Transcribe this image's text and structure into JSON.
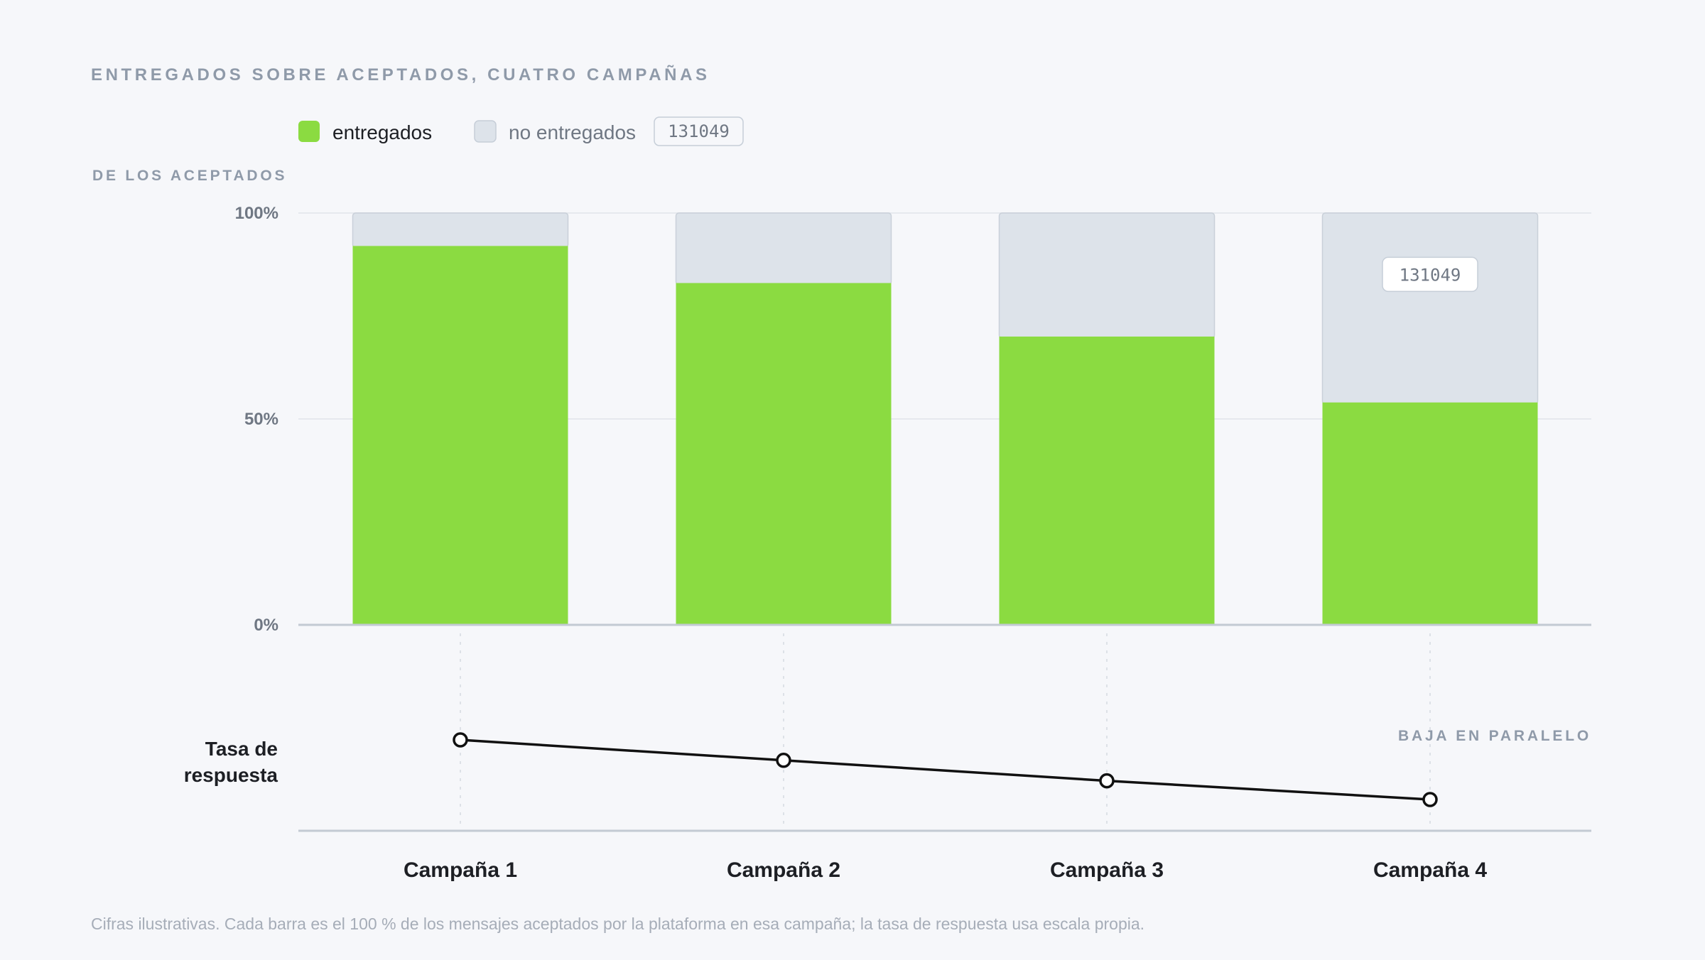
{
  "title": "ENTREGADOS SOBRE ACEPTADOS, CUATRO CAMPAÑAS",
  "footnote": "Cifras ilustrativas. Cada barra es el 100 % de los mensajes aceptados por la plataforma en esa campaña; la tasa de respuesta usa escala propia.",
  "legend": {
    "delivered_label": "entregados",
    "undelivered_label": "no entregados",
    "badge": "131049"
  },
  "colors": {
    "delivered": "#8bdb41",
    "undelivered": "#dde3ea",
    "line": "#111111",
    "grid": "#e6e9ee",
    "axis": "#c3cad3"
  },
  "chart_data": [
    {
      "type": "bar",
      "stacked": true,
      "categories": [
        "Campaña 1",
        "Campaña 2",
        "Campaña 3",
        "Campaña 4"
      ],
      "series": [
        {
          "name": "entregados",
          "values": [
            92,
            83,
            70,
            54
          ]
        },
        {
          "name": "no entregados",
          "values": [
            8,
            17,
            30,
            46
          ]
        }
      ],
      "ylabel": "DE LOS ACEPTADOS",
      "yticks": [
        "100%",
        "50%",
        "0%"
      ],
      "ylim": [
        0,
        100
      ],
      "annotation": {
        "category": "Campaña 4",
        "text": "131049"
      },
      "grid": true,
      "legend": "top-left"
    },
    {
      "type": "line",
      "series": [
        {
          "name": "Tasa de respuesta",
          "values": [
            90,
            66,
            42,
            20
          ]
        }
      ],
      "row_label": [
        "Tasa de",
        "respuesta"
      ],
      "annotation": "BAJA EN PARALELO",
      "ylim": [
        0,
        100
      ]
    }
  ]
}
